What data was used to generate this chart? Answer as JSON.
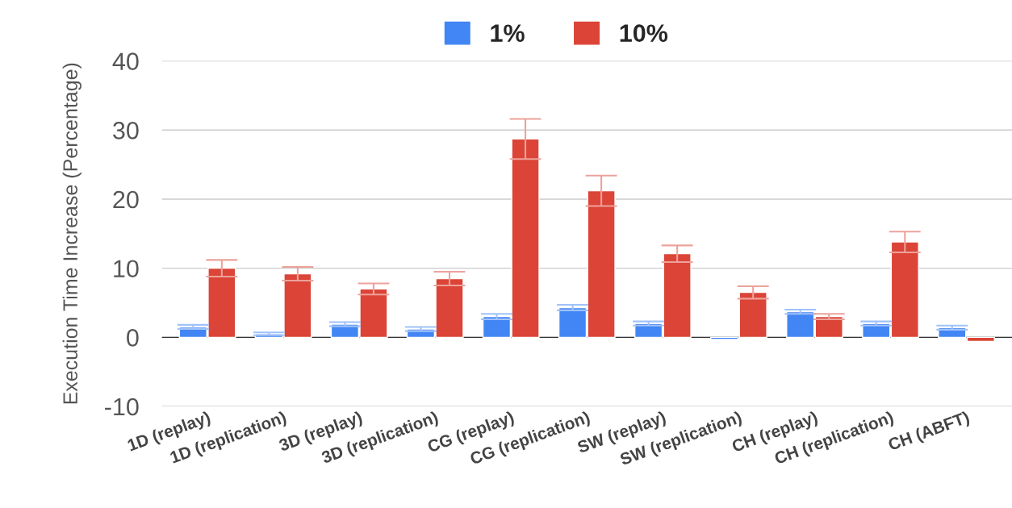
{
  "chart_data": {
    "type": "bar",
    "ylabel": "Execution Time Increase (Percentage)",
    "categories": [
      "1D (replay)",
      "1D (replication)",
      "3D (replay)",
      "3D (replication)",
      "CG (replay)",
      "CG (replication)",
      "SW (replay)",
      "SW (replication)",
      "CH (replay)",
      "CH (replication)",
      "CH (ABFT)"
    ],
    "series": [
      {
        "name": "1%",
        "color": "#4285f4",
        "values": [
          1.5,
          0.5,
          1.9,
          1.2,
          3.0,
          4.3,
          2.0,
          -0.3,
          3.7,
          2.0,
          1.4
        ],
        "errors": [
          0.3,
          0.2,
          0.3,
          0.3,
          0.4,
          0.4,
          0.3,
          null,
          0.3,
          0.3,
          0.3
        ]
      },
      {
        "name": "10%",
        "color": "#db4437",
        "values": [
          10.0,
          9.2,
          7.0,
          8.5,
          28.7,
          21.2,
          12.1,
          6.5,
          3.0,
          13.8,
          -0.6
        ],
        "errors": [
          1.2,
          1.0,
          0.8,
          1.0,
          2.9,
          2.2,
          1.2,
          0.9,
          0.4,
          1.5,
          null
        ]
      }
    ],
    "ylim": [
      -10,
      40
    ],
    "yticks": [
      -10,
      0,
      10,
      20,
      30,
      40
    ],
    "grid": "y",
    "legend": "top"
  }
}
